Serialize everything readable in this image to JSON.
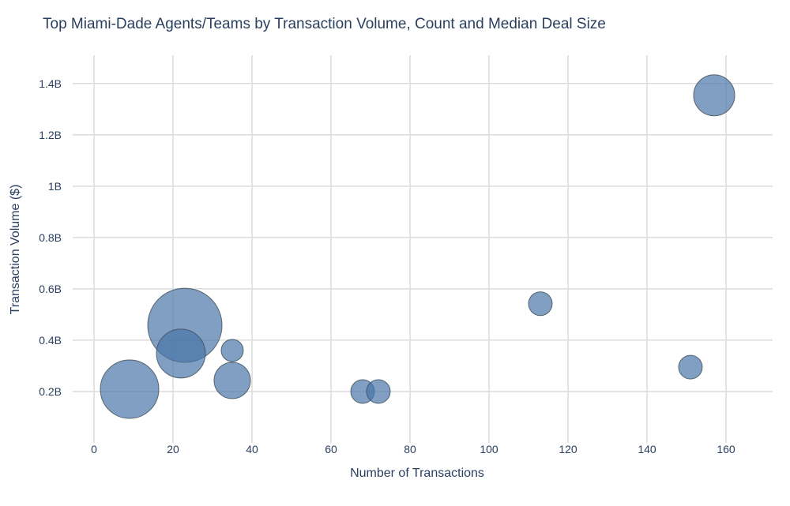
{
  "chart_data": {
    "type": "scatter",
    "subtype": "bubble",
    "title": "Top Miami-Dade Agents/Teams by Transaction Volume, Count and Median Deal Size",
    "xlabel": "Number of Transactions",
    "ylabel": "Transaction Volume ($)",
    "xlim": [
      -5.4,
      171.8
    ],
    "ylim": [
      0,
      1.51
    ],
    "y_unit": "B",
    "xticks": [
      0,
      20,
      40,
      60,
      80,
      100,
      120,
      140,
      160
    ],
    "xtick_labels": [
      "0",
      "20",
      "40",
      "60",
      "80",
      "100",
      "120",
      "140",
      "160"
    ],
    "yticks": [
      0.2,
      0.4,
      0.6,
      0.8,
      1.0,
      1.2,
      1.4
    ],
    "ytick_labels": [
      "0.2B",
      "0.4B",
      "0.6B",
      "0.8B",
      "1B",
      "1.2B",
      "1.4B"
    ],
    "grid": true,
    "marker_color": "#4a76a8",
    "marker_line_color": "#3b4a55",
    "points": [
      {
        "x": 157,
        "y": 1.354,
        "size": 26
      },
      {
        "x": 113,
        "y": 0.542,
        "size": 15
      },
      {
        "x": 151,
        "y": 0.295,
        "size": 15
      },
      {
        "x": 23,
        "y": 0.458,
        "size": 47
      },
      {
        "x": 22,
        "y": 0.348,
        "size": 31
      },
      {
        "x": 35,
        "y": 0.36,
        "size": 14
      },
      {
        "x": 35,
        "y": 0.243,
        "size": 23
      },
      {
        "x": 9,
        "y": 0.209,
        "size": 37
      },
      {
        "x": 68,
        "y": 0.2,
        "size": 15
      },
      {
        "x": 72,
        "y": 0.2,
        "size": 15
      }
    ]
  }
}
